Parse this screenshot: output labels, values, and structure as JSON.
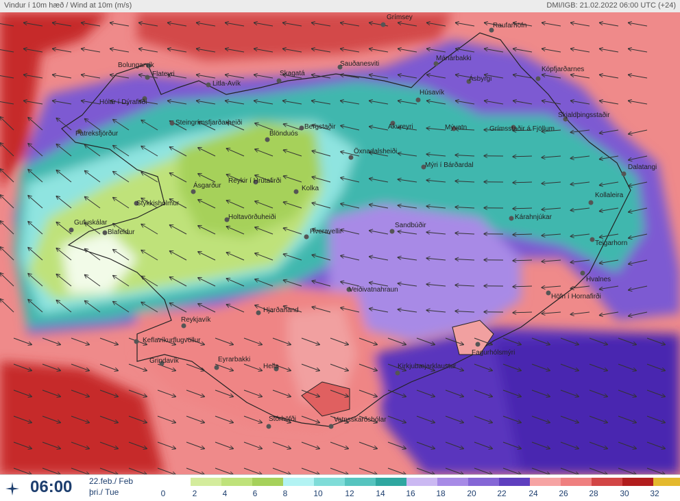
{
  "header": {
    "left_title": "Vindur í 10m hæð / Wind at 10m (m/s)",
    "right_info": "DMI/IGB: 21.02.2022 06:00 UTC (+24)"
  },
  "footer": {
    "time": "06:00",
    "date_line1": "22.feb./ Feb",
    "date_line2": "þri./ Tue",
    "icon": "wind-compass-icon"
  },
  "legend": {
    "labels": [
      "0",
      "2",
      "4",
      "6",
      "8",
      "10",
      "12",
      "14",
      "16",
      "18",
      "20",
      "22",
      "24",
      "26",
      "28",
      "30",
      "32"
    ],
    "colors": [
      "#d4ec9c",
      "#bfe27a",
      "#a6d15a",
      "#b3f3f3",
      "#7fdcd8",
      "#56c4bf",
      "#2fa7a0",
      "#cbb8f2",
      "#a78ae6",
      "#8566d6",
      "#5f3fbf",
      "#f6a3a3",
      "#ef7f7f",
      "#d24545",
      "#b21d1d",
      "#e4b92e"
    ]
  },
  "places": [
    {
      "name": "Grímsey"
    },
    {
      "name": "Raufarhöfn"
    },
    {
      "name": "Bolungarvík"
    },
    {
      "name": "Flateyri"
    },
    {
      "name": "Hólar í Dýrafirði"
    },
    {
      "name": "Patreksfjörður"
    },
    {
      "name": "Litla-Avík"
    },
    {
      "name": "Skagatá"
    },
    {
      "name": "Sauðanesviti"
    },
    {
      "name": "Mánárbakki"
    },
    {
      "name": "Ásbyrgi"
    },
    {
      "name": "Húsavík"
    },
    {
      "name": "Kópfjarðarnes"
    },
    {
      "name": "Steingrímsfjarðarheiði"
    },
    {
      "name": "Blönduós"
    },
    {
      "name": "Bergstaðir"
    },
    {
      "name": "Akureyri"
    },
    {
      "name": "Mývatn"
    },
    {
      "name": "Grímsstaðir á Fjöllum"
    },
    {
      "name": "Skjaldþingsstaðir"
    },
    {
      "name": "Öxnadalsheiði"
    },
    {
      "name": "Mýri í Bárðardal"
    },
    {
      "name": "Dalatangi"
    },
    {
      "name": "Ásgarður"
    },
    {
      "name": "Reykir í Hrútafirði"
    },
    {
      "name": "Kolka"
    },
    {
      "name": "Kollaleira"
    },
    {
      "name": "Stykkishólmur"
    },
    {
      "name": "Gufuskálar"
    },
    {
      "name": "Blafeldur"
    },
    {
      "name": "Holtavörðuheiði"
    },
    {
      "name": "Sandbúðir"
    },
    {
      "name": "Kárahnjúkar"
    },
    {
      "name": "Hveravellir"
    },
    {
      "name": "Teigarhorn"
    },
    {
      "name": "Hvalnes"
    },
    {
      "name": "Veiðivatnahraun"
    },
    {
      "name": "Höfn í Hornafirði"
    },
    {
      "name": "Hjarðarland"
    },
    {
      "name": "Reykjavík"
    },
    {
      "name": "Keflavíkurflugvöllur"
    },
    {
      "name": "Fagurhólsmýri"
    },
    {
      "name": "Grindavík"
    },
    {
      "name": "Eyrarbakki"
    },
    {
      "name": "Hella"
    },
    {
      "name": "Kirkjubæjarklaustur"
    },
    {
      "name": "Stórhöfði"
    },
    {
      "name": "Vatnsskarðshólar"
    }
  ]
}
